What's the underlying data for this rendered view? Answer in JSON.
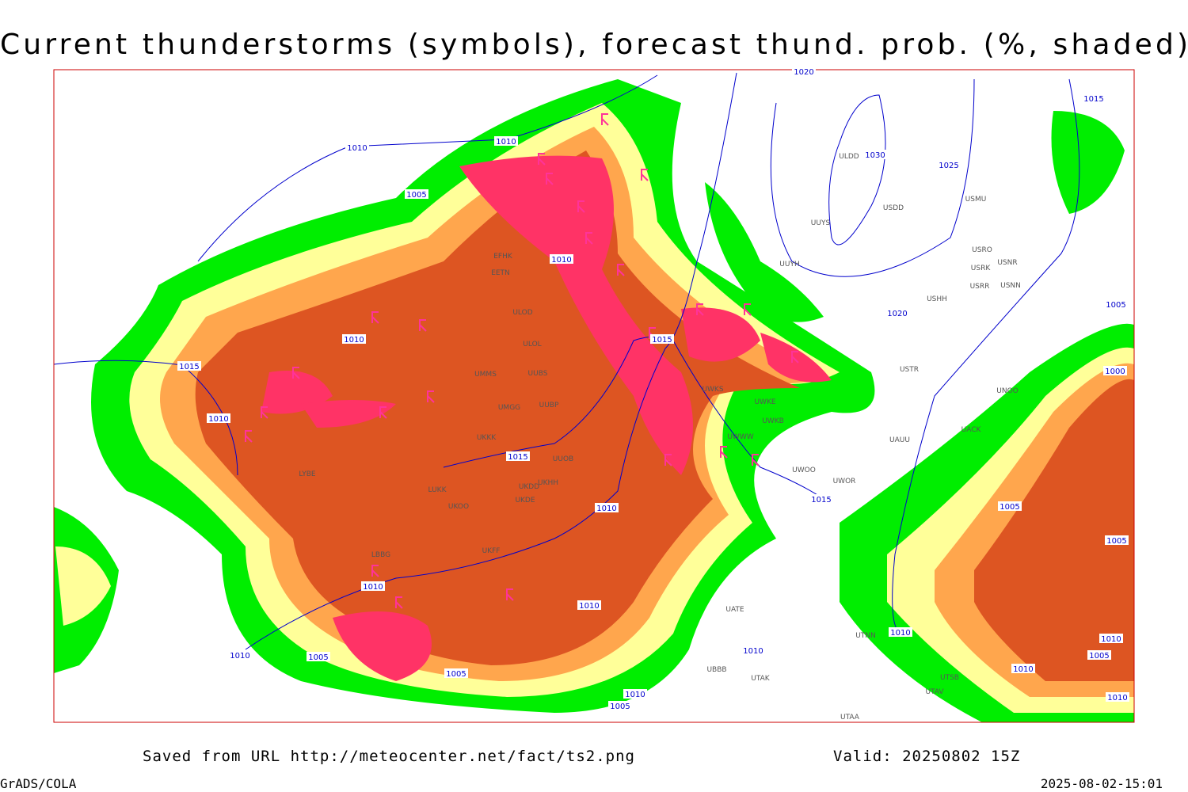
{
  "title": "Current thunderstorms (symbols), forecast thund. prob. (%, shaded)",
  "footer": {
    "source": "Saved from URL http://meteocenter.net/fact/ts2.png",
    "valid": "Valid: 20250802 15Z",
    "credit": "GrADS/COLA",
    "timestamp": "2025-08-02-15:01"
  },
  "isobars": [
    1020,
    1010,
    1010,
    1005,
    1030,
    1025,
    1015,
    1020,
    1010,
    1010,
    1015,
    1010,
    1015,
    1015,
    1010,
    1015,
    1005,
    1000,
    1005,
    1005,
    1010,
    1010,
    1010,
    1005,
    1005,
    1010,
    1010,
    1010,
    1010,
    1005,
    1005,
    1010,
    1010
  ],
  "stations": [
    "ULDD",
    "USDD",
    "USMU",
    "UUYS",
    "UUYH",
    "USRO",
    "USRK",
    "USNR",
    "USRR",
    "USNN",
    "USHH",
    "USTR",
    "UNOO",
    "UACK",
    "UAUU",
    "UWOO",
    "UWOR",
    "UWKE",
    "UWKS",
    "UWKB",
    "UWWW",
    "UUOB",
    "UUBS",
    "UUBP",
    "UMGG",
    "UKKK",
    "UMMS",
    "ULOD",
    "ULOL",
    "EETN",
    "EFHK",
    "LUKK",
    "UKOO",
    "UKDE",
    "UKHH",
    "UKDD",
    "LBBG",
    "UKFF",
    "UBBB",
    "UATE",
    "UTAK",
    "UTNN",
    "UTSB",
    "UTAV",
    "UTAA",
    "LYBE"
  ]
}
